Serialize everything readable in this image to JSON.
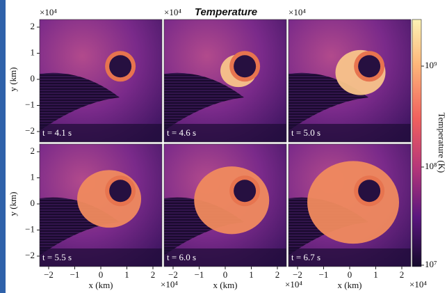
{
  "figure": {
    "title": "Temperature",
    "panels": [
      {
        "time": "t = 4.1 s"
      },
      {
        "time": "t = 4.6 s"
      },
      {
        "time": "t = 5.0 s"
      },
      {
        "time": "t = 5.5 s"
      },
      {
        "time": "t = 6.0 s"
      },
      {
        "time": "t = 6.7 s"
      }
    ],
    "x_axis": {
      "label": "x  (km)",
      "ticks": [
        "−2",
        "−1",
        "0",
        "1",
        "2"
      ],
      "multiplier": "×10⁴"
    },
    "y_axis": {
      "label": "y  (km)",
      "ticks": [
        "2",
        "1",
        "0",
        "−1",
        "−2"
      ],
      "multiplier": "×10⁴"
    },
    "colorbar": {
      "label": "Temperature  (K)",
      "ticks": [
        "10⁹",
        "10⁸",
        "10⁷"
      ]
    }
  }
}
